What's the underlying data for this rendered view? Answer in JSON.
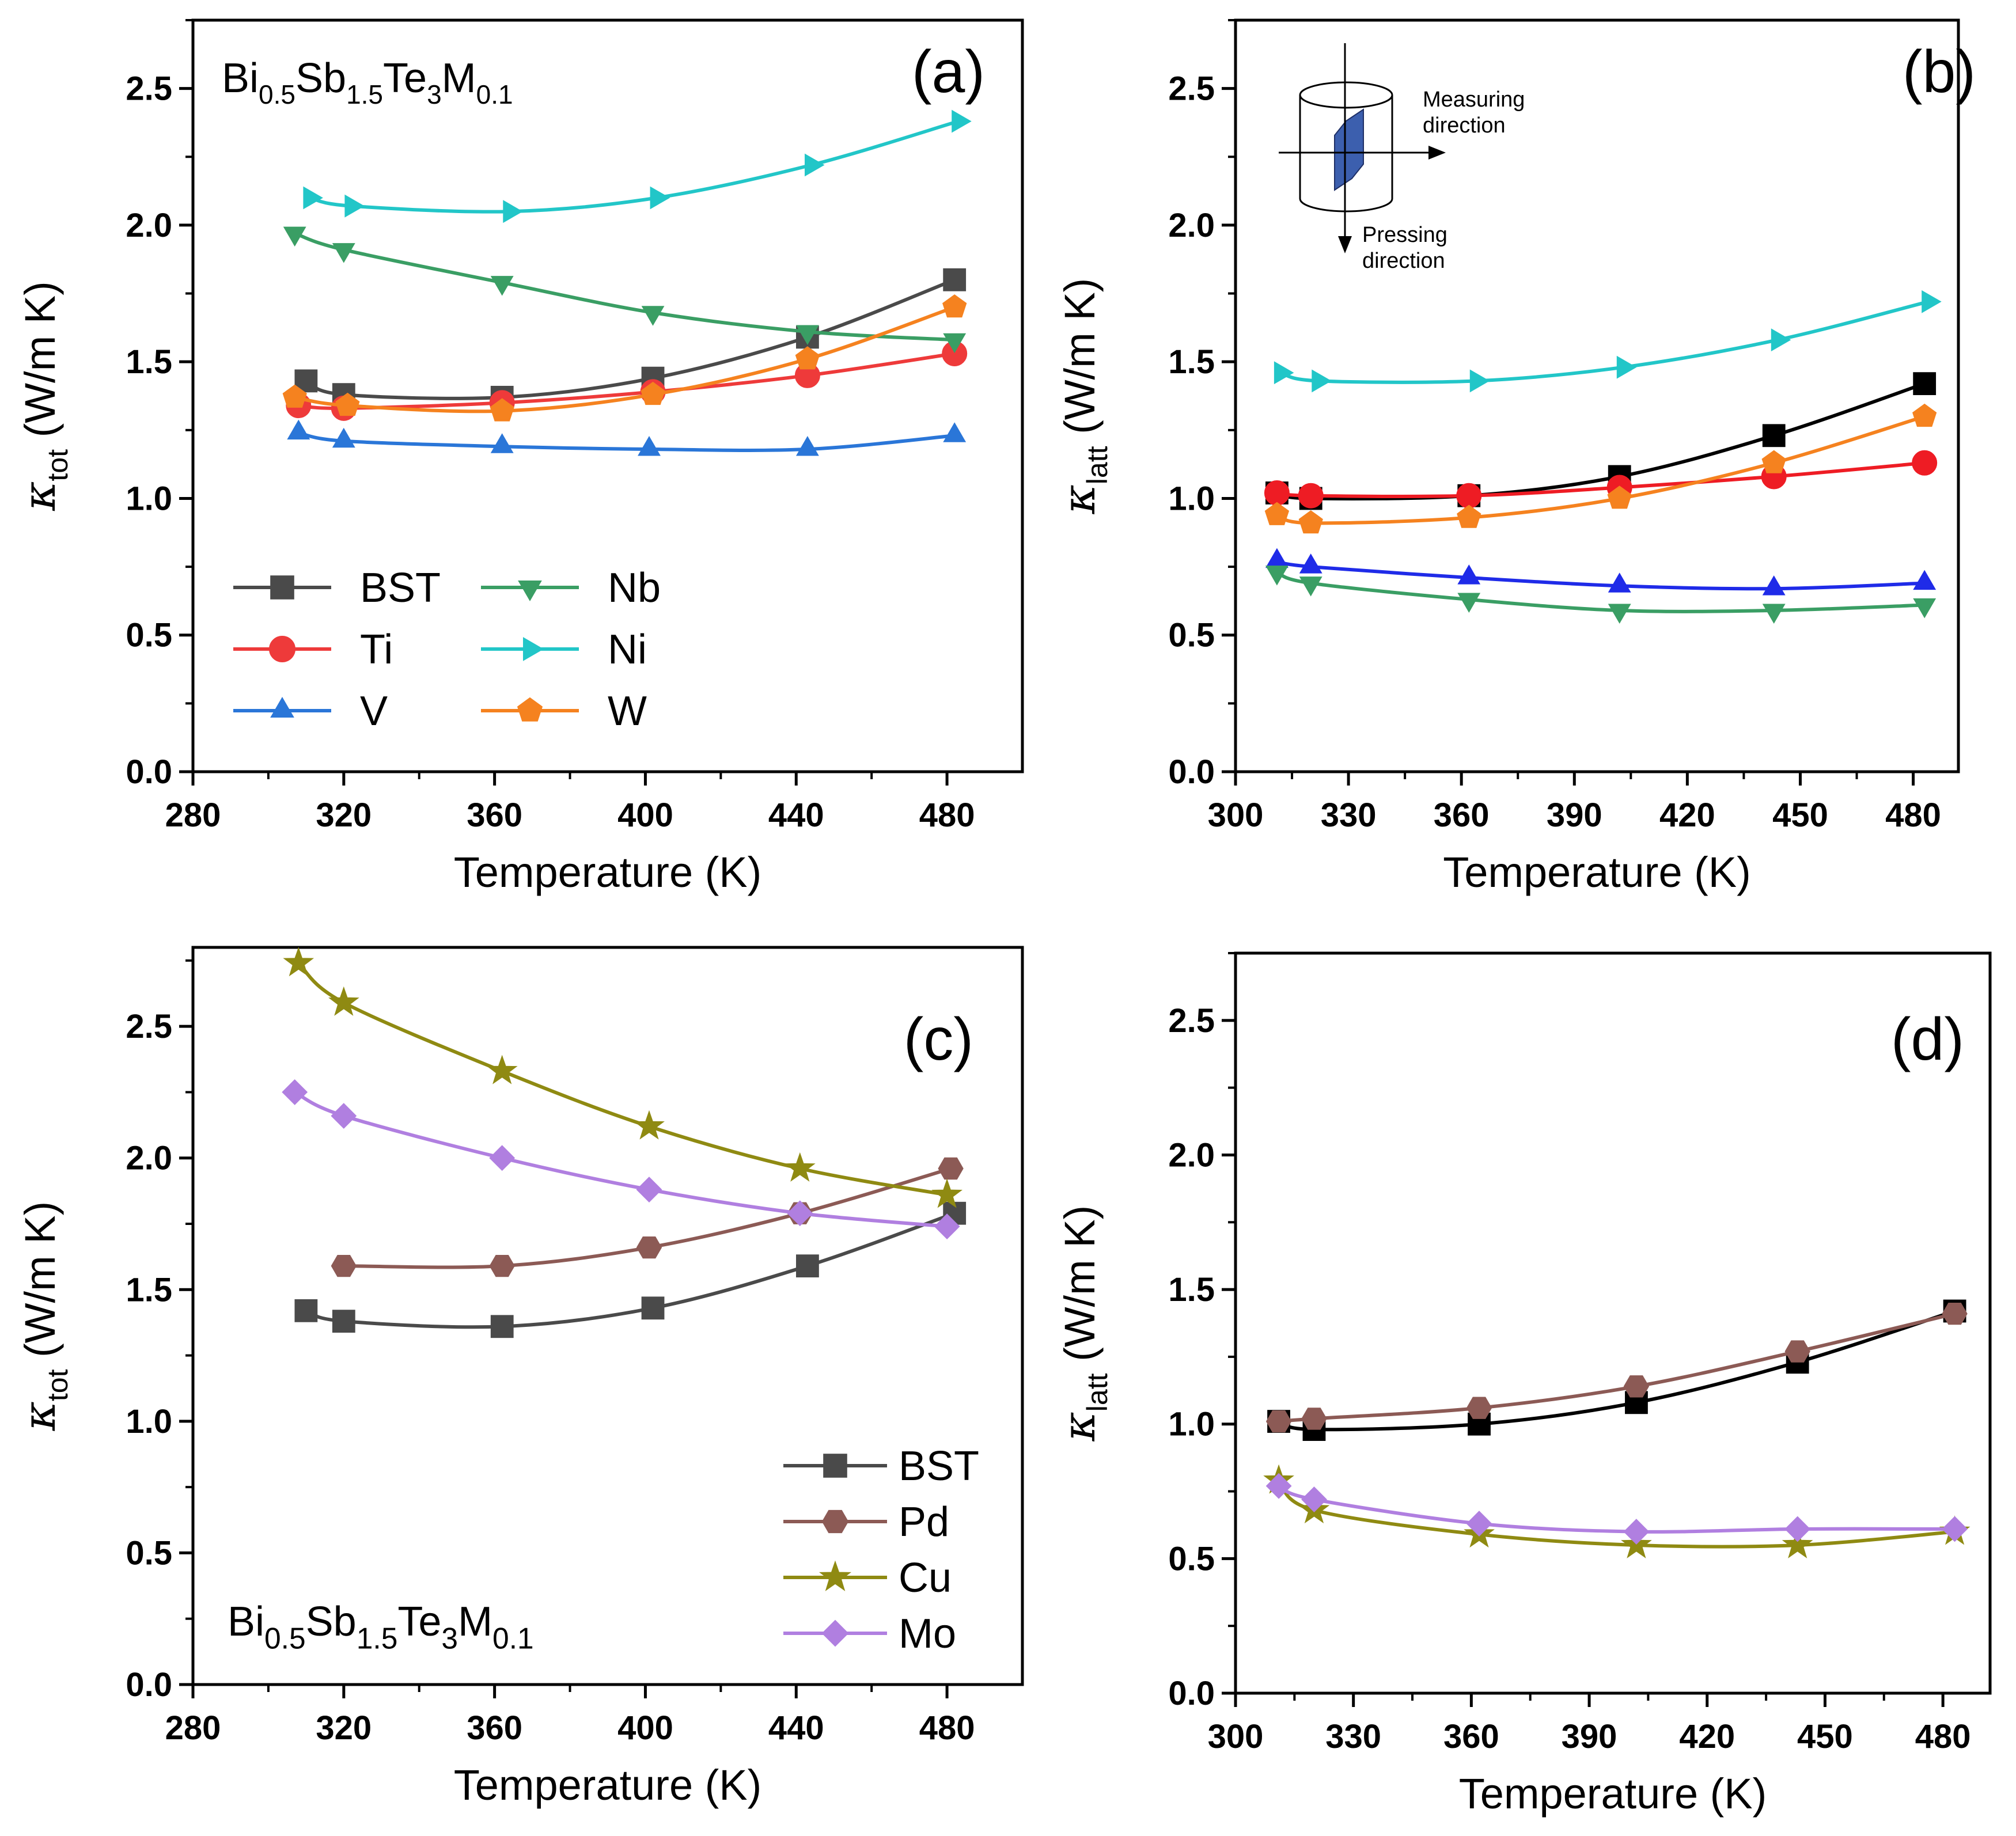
{
  "figure": {
    "compound": {
      "base": "Bi",
      "s1": "0.5",
      "e2": "Sb",
      "s2": "1.5",
      "e3": "Te",
      "s3": "3",
      "e4": "M",
      "s4": "0.1"
    },
    "inset": {
      "measuring_line1": "Measuring",
      "measuring_line2": "direction",
      "pressing_line1": "Pressing",
      "pressing_line2": "direction"
    }
  },
  "chart_data": [
    {
      "id": "a",
      "type": "line",
      "panel_label": "(a)",
      "xlabel": "Temperature (K)",
      "ylabel_symbol": "κ",
      "ylabel_sub": "tot",
      "ylabel_unit": "(W/m K)",
      "xlim": [
        280,
        500
      ],
      "ylim": [
        0.0,
        2.75
      ],
      "xticks": [
        280,
        320,
        360,
        400,
        440,
        480
      ],
      "yticks": [
        0.0,
        0.5,
        1.0,
        1.5,
        2.0,
        2.5
      ],
      "show_formula": true,
      "legend_layout": "grid-2col",
      "series": [
        {
          "name": "BST",
          "marker": "square",
          "color": "#4a4a4a",
          "x": [
            310,
            320,
            362,
            402,
            443,
            482
          ],
          "y": [
            1.43,
            1.38,
            1.37,
            1.44,
            1.59,
            1.8
          ]
        },
        {
          "name": "Ti",
          "marker": "circle",
          "color": "#ee3a3a",
          "x": [
            308,
            320,
            362,
            402,
            443,
            482
          ],
          "y": [
            1.34,
            1.33,
            1.35,
            1.39,
            1.45,
            1.53
          ]
        },
        {
          "name": "V",
          "marker": "triangle-up",
          "color": "#2a76d8",
          "x": [
            308,
            320,
            362,
            401,
            443,
            482
          ],
          "y": [
            1.24,
            1.21,
            1.19,
            1.18,
            1.18,
            1.23
          ]
        },
        {
          "name": "Nb",
          "marker": "triangle-down",
          "color": "#3a9e64",
          "x": [
            307,
            320,
            362,
            402,
            443,
            482
          ],
          "y": [
            1.97,
            1.91,
            1.79,
            1.68,
            1.61,
            1.58
          ]
        },
        {
          "name": "Ni",
          "marker": "triangle-right",
          "color": "#22c6c8",
          "x": [
            311,
            322,
            364,
            403,
            444,
            483
          ],
          "y": [
            2.1,
            2.07,
            2.05,
            2.1,
            2.22,
            2.38
          ]
        },
        {
          "name": "W",
          "marker": "pentagon",
          "color": "#f5821f",
          "x": [
            307,
            321,
            362,
            402,
            443,
            482
          ],
          "y": [
            1.37,
            1.34,
            1.32,
            1.38,
            1.51,
            1.7
          ]
        }
      ]
    },
    {
      "id": "b",
      "type": "line",
      "panel_label": "(b)",
      "xlabel": "Temperature (K)",
      "ylabel_symbol": "κ",
      "ylabel_sub": "latt",
      "ylabel_unit": "(W/m K)",
      "xlim": [
        300,
        492
      ],
      "ylim": [
        0.0,
        2.75
      ],
      "xticks": [
        300,
        330,
        360,
        390,
        420,
        450,
        480
      ],
      "yticks": [
        0.0,
        0.5,
        1.0,
        1.5,
        2.0,
        2.5
      ],
      "show_inset": true,
      "series": [
        {
          "name": "BST",
          "marker": "square",
          "color": "#000000",
          "x": [
            311,
            320,
            362,
            402,
            443,
            483
          ],
          "y": [
            1.02,
            1.0,
            1.01,
            1.08,
            1.23,
            1.42
          ]
        },
        {
          "name": "Ti",
          "marker": "circle",
          "color": "#ee1c24",
          "x": [
            311,
            320,
            362,
            402,
            443,
            483
          ],
          "y": [
            1.02,
            1.01,
            1.01,
            1.04,
            1.08,
            1.13
          ]
        },
        {
          "name": "V",
          "marker": "triangle-up",
          "color": "#1f2be8",
          "x": [
            311,
            320,
            362,
            402,
            443,
            483
          ],
          "y": [
            0.77,
            0.75,
            0.71,
            0.68,
            0.67,
            0.69
          ]
        },
        {
          "name": "Nb",
          "marker": "triangle-down",
          "color": "#3a9e64",
          "x": [
            311,
            320,
            362,
            402,
            443,
            483
          ],
          "y": [
            0.73,
            0.69,
            0.63,
            0.59,
            0.59,
            0.61
          ]
        },
        {
          "name": "Ni",
          "marker": "triangle-right",
          "color": "#22c6c8",
          "x": [
            312,
            322,
            364,
            403,
            444,
            484
          ],
          "y": [
            1.46,
            1.43,
            1.43,
            1.48,
            1.58,
            1.72
          ]
        },
        {
          "name": "W",
          "marker": "pentagon",
          "color": "#f5821f",
          "x": [
            311,
            320,
            362,
            402,
            443,
            483
          ],
          "y": [
            0.94,
            0.91,
            0.93,
            1.0,
            1.13,
            1.3
          ]
        }
      ]
    },
    {
      "id": "c",
      "type": "line",
      "panel_label": "(c)",
      "xlabel": "Temperature (K)",
      "ylabel_symbol": "κ",
      "ylabel_sub": "tot",
      "ylabel_unit": "(W/m K)",
      "xlim": [
        280,
        500
      ],
      "ylim": [
        0.0,
        2.8
      ],
      "xticks": [
        280,
        320,
        360,
        400,
        440,
        480
      ],
      "yticks": [
        0.0,
        0.5,
        1.0,
        1.5,
        2.0,
        2.5
      ],
      "show_formula": true,
      "legend_layout": "column",
      "series": [
        {
          "name": "BST",
          "marker": "square",
          "color": "#4a4a4a",
          "x": [
            310,
            320,
            362,
            402,
            443,
            482
          ],
          "y": [
            1.42,
            1.38,
            1.36,
            1.43,
            1.59,
            1.79
          ]
        },
        {
          "name": "Pd",
          "marker": "hexagon",
          "color": "#8c5a55",
          "x": [
            320,
            362,
            401,
            441,
            481
          ],
          "y": [
            1.59,
            1.59,
            1.66,
            1.79,
            1.96
          ]
        },
        {
          "name": "Cu",
          "marker": "star",
          "color": "#8f8a12",
          "x": [
            308,
            320,
            362,
            401,
            441,
            480
          ],
          "y": [
            2.74,
            2.59,
            2.33,
            2.12,
            1.96,
            1.86
          ]
        },
        {
          "name": "Mo",
          "marker": "diamond",
          "color": "#b07fe0",
          "x": [
            307,
            320,
            362,
            401,
            441,
            480
          ],
          "y": [
            2.25,
            2.16,
            2.0,
            1.88,
            1.79,
            1.74
          ]
        }
      ]
    },
    {
      "id": "d",
      "type": "line",
      "panel_label": "(d)",
      "xlabel": "Temperature (K)",
      "ylabel_symbol": "κ",
      "ylabel_sub": "latt",
      "ylabel_unit": "(W/m K)",
      "xlim": [
        300,
        492
      ],
      "ylim": [
        0.0,
        2.75
      ],
      "xticks": [
        300,
        330,
        360,
        390,
        420,
        450,
        480
      ],
      "yticks": [
        0.0,
        0.5,
        1.0,
        1.5,
        2.0,
        2.5
      ],
      "series": [
        {
          "name": "BST",
          "marker": "square",
          "color": "#000000",
          "x": [
            311,
            320,
            362,
            402,
            443,
            483
          ],
          "y": [
            1.01,
            0.98,
            1.0,
            1.08,
            1.23,
            1.42
          ]
        },
        {
          "name": "Pd",
          "marker": "hexagon",
          "color": "#8c5a55",
          "x": [
            311,
            320,
            362,
            402,
            443,
            483
          ],
          "y": [
            1.01,
            1.02,
            1.06,
            1.14,
            1.27,
            1.41
          ]
        },
        {
          "name": "Cu",
          "marker": "star",
          "color": "#8f8a12",
          "x": [
            311,
            320,
            362,
            402,
            443,
            483
          ],
          "y": [
            0.79,
            0.68,
            0.59,
            0.55,
            0.55,
            0.6
          ]
        },
        {
          "name": "Mo",
          "marker": "diamond",
          "color": "#b07fe0",
          "x": [
            311,
            320,
            362,
            402,
            443,
            483
          ],
          "y": [
            0.77,
            0.72,
            0.63,
            0.6,
            0.61,
            0.61
          ]
        }
      ]
    }
  ]
}
